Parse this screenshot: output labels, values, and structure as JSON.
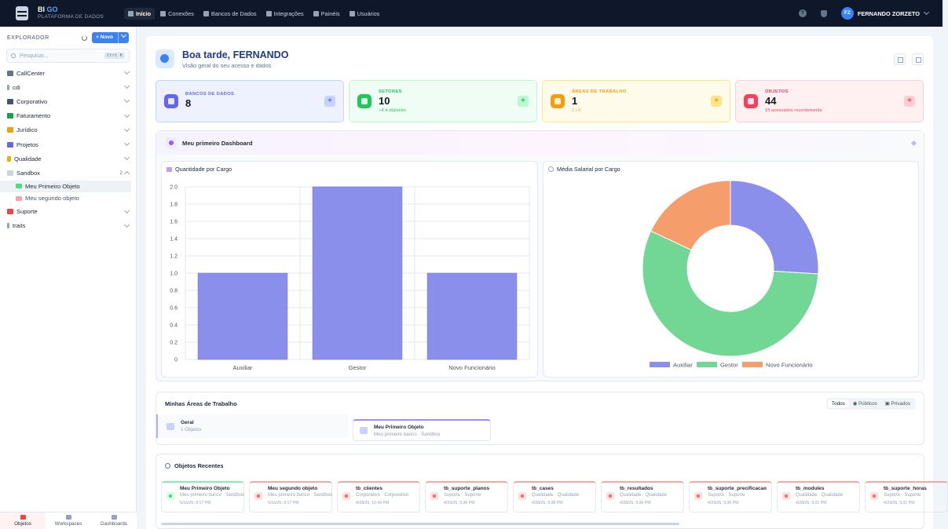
{
  "app": {
    "name_a": "BI",
    "name_b": "GO",
    "subtitle": "PLATAFORMA DE DADOS"
  },
  "nav": [
    {
      "label": "Início",
      "icon": "home-icon"
    },
    {
      "label": "Conexões",
      "icon": "plug-icon"
    },
    {
      "label": "Bancos de Dados",
      "icon": "database-icon"
    },
    {
      "label": "Integrações",
      "icon": "integration-icon"
    },
    {
      "label": "Painéis",
      "icon": "panel-icon"
    },
    {
      "label": "Usuários",
      "icon": "users-icon"
    }
  ],
  "user": {
    "initials": "FZ",
    "name": "FERNANDO ZORZETO"
  },
  "sidebar": {
    "title": "EXPLORADOR",
    "new_label": "Novo",
    "search_placeholder": "Pesquisar...",
    "shortcut": "Ctrl K",
    "items": [
      {
        "label": "CallCenter",
        "color": "#64748b"
      },
      {
        "label": "cdi",
        "color": "#64748b"
      },
      {
        "label": "Corporativo",
        "color": "#475569"
      },
      {
        "label": "Faturamento",
        "color": "#16a34a"
      },
      {
        "label": "Jurídico",
        "color": "#f59e0b"
      },
      {
        "label": "Projetos",
        "color": "#6366f1"
      },
      {
        "label": "Qualidade",
        "color": "#eab308"
      },
      {
        "label": "Sandbox",
        "color": "#94a3b8",
        "count": "2"
      },
      {
        "label": "Suporte",
        "color": "#ef4444"
      },
      {
        "label": "traits",
        "color": "#94a3b8"
      }
    ],
    "sandbox_children": [
      "Meu Primeiro Objeto",
      "Meu segundo objeto"
    ],
    "footer": [
      "Objetos",
      "Workspaces",
      "Dashboards"
    ]
  },
  "greeting": {
    "title": "Boa tarde, FERNANDO",
    "subtitle": "Visão geral do seu acesso e dados"
  },
  "cards": [
    {
      "label": "BANCOS DE DADOS",
      "value": "8",
      "sub": "",
      "accent": "#6366f1",
      "bg": "#eef2ff",
      "border": "#c7d2fe"
    },
    {
      "label": "SETORES",
      "value": "10",
      "sub": "~4.4 obj/setor",
      "accent": "#22c55e",
      "bg": "#f0fdf4",
      "border": "#bbf7d0"
    },
    {
      "label": "ÁREAS DE TRABALHO",
      "value": "1",
      "sub": "1 | 0",
      "accent": "#f59e0b",
      "bg": "#fffbeb",
      "border": "#fde68a"
    },
    {
      "label": "OBJETOS",
      "value": "44",
      "sub": "15 acessados recentemente",
      "accent": "#f43f5e",
      "bg": "#fff1f2",
      "border": "#fecdd3"
    }
  ],
  "dashboard": {
    "title": "Meu primeiro Dashboard"
  },
  "chart_data": [
    {
      "type": "bar",
      "title": "Quantidade por Cargo",
      "categories": [
        "Auxiliar",
        "Gestor",
        "Novo Funcionário"
      ],
      "values": [
        1,
        2,
        1
      ],
      "ylim": [
        0,
        2
      ],
      "yticks": [
        "0",
        "0.2",
        "0.4",
        "0.6",
        "0.8",
        "1.0",
        "1.2",
        "1.4",
        "1.6",
        "1.8",
        "2.0"
      ],
      "grid": true,
      "color": "#8b8fec"
    },
    {
      "type": "pie",
      "title": "Média Salarial por Cargo",
      "labels": [
        "Auxiliar",
        "Gestor",
        "Novo Funcionário"
      ],
      "values": [
        26,
        56,
        18
      ],
      "colors": [
        "#8b8fec",
        "#72d694",
        "#f59e6b"
      ],
      "donut": true,
      "legend": "bottom"
    }
  ],
  "areas": {
    "title": "Minhas Áreas de Trabalho",
    "filters": [
      "Todos",
      "Públicos",
      "Privados"
    ],
    "items": [
      {
        "title": "Geral",
        "sub": "1 Objetos"
      },
      {
        "title": "Meu Primeiro Objeto",
        "sub": "Meu primeiro banco · Sandbox"
      }
    ]
  },
  "recent": {
    "title": "Objetos Recentes",
    "items": [
      {
        "title": "Meu Primeiro Objeto",
        "sub": "Meu primeiro banco · Sandbox",
        "date": "5/16/26, 8:17 PM",
        "tone": "green"
      },
      {
        "title": "Meu segundo objeto",
        "sub": "Meu primeiro banco · Sandbox",
        "date": "5/16/26, 8:17 PM",
        "tone": "red"
      },
      {
        "title": "tb_clientes",
        "sub": "Corporativo · Corporativo",
        "date": "4/28/26, 10:43 PM",
        "tone": "red"
      },
      {
        "title": "tb_suporte_planos",
        "sub": "Suporte · Suporte",
        "date": "4/29/26, 9:36 PM",
        "tone": "red"
      },
      {
        "title": "tb_cases",
        "sub": "Qualidade · Qualidade",
        "date": "4/28/26, 9:38 PM",
        "tone": "red"
      },
      {
        "title": "tb_resultados",
        "sub": "Qualidade · Qualidade",
        "date": "4/28/26, 9:36 PM",
        "tone": "red"
      },
      {
        "title": "tb_suporte_precificacao",
        "sub": "Suporte · Suporte",
        "date": "4/29/26, 9:36 PM",
        "tone": "red"
      },
      {
        "title": "tb_modules",
        "sub": "Qualidade · Qualidade",
        "date": "4/28/26, 9:31 PM",
        "tone": "red"
      },
      {
        "title": "tb_suporte_horas",
        "sub": "Suporte · Suporte",
        "date": "4/29/26, 9:31 PM",
        "tone": "red"
      }
    ]
  }
}
